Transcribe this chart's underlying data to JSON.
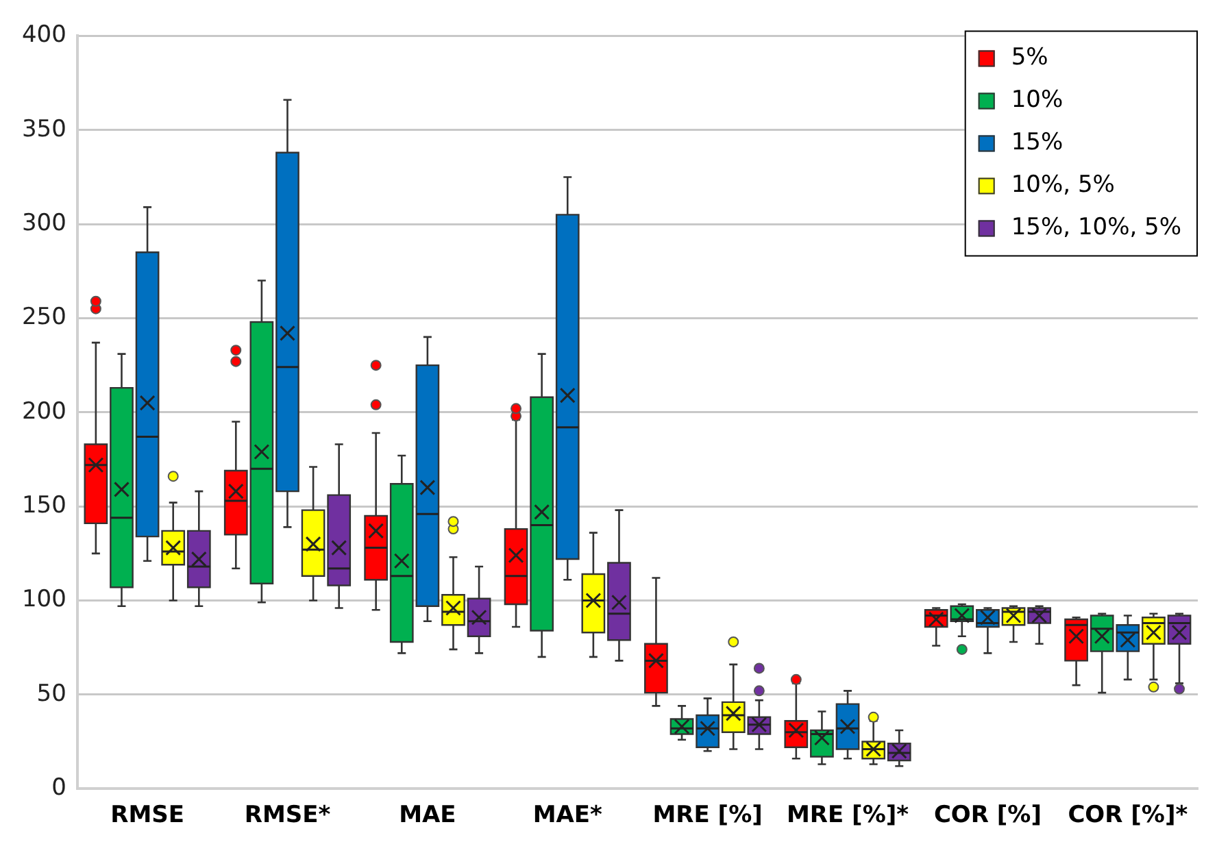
{
  "chart_data": {
    "type": "box",
    "categories": [
      "RMSE",
      "RMSE*",
      "MAE",
      "MAE*",
      "MRE [%]",
      "MRE [%]*",
      "COR [%]",
      "COR [%]*"
    ],
    "ylim": [
      0,
      400
    ],
    "yticks": [
      0,
      50,
      100,
      150,
      200,
      250,
      300,
      350,
      400
    ],
    "grid": "y",
    "legend": "top right",
    "series": [
      {
        "name": "5%",
        "color": "#ff0000",
        "boxes": [
          {
            "low": 125,
            "q1": 141,
            "median": 172,
            "q3": 183,
            "high": 237,
            "mean": 172,
            "outliers": [
              255,
              259
            ]
          },
          {
            "low": 117,
            "q1": 135,
            "median": 153,
            "q3": 169,
            "high": 195,
            "mean": 158,
            "outliers": [
              227,
              233
            ]
          },
          {
            "low": 95,
            "q1": 111,
            "median": 128,
            "q3": 145,
            "high": 189,
            "mean": 137,
            "outliers": [
              204,
              225
            ]
          },
          {
            "low": 86,
            "q1": 98,
            "median": 113,
            "q3": 138,
            "high": 196,
            "mean": 124,
            "outliers": [
              198,
              202
            ]
          },
          {
            "low": 44,
            "q1": 51,
            "median": 68,
            "q3": 77,
            "high": 112,
            "mean": 68
          },
          {
            "low": 16,
            "q1": 22,
            "median": 30,
            "q3": 36,
            "high": 56,
            "mean": 31,
            "outliers": [
              58
            ]
          },
          {
            "low": 76,
            "q1": 86,
            "median": 92,
            "q3": 95,
            "high": 96,
            "mean": 90
          },
          {
            "low": 55,
            "q1": 68,
            "median": 87,
            "q3": 90,
            "high": 91,
            "mean": 81
          }
        ]
      },
      {
        "name": "10%",
        "color": "#00b050",
        "boxes": [
          {
            "low": 97,
            "q1": 107,
            "median": 144,
            "q3": 213,
            "high": 231,
            "mean": 159
          },
          {
            "low": 99,
            "q1": 109,
            "median": 170,
            "q3": 248,
            "high": 270,
            "mean": 179
          },
          {
            "low": 72,
            "q1": 78,
            "median": 113,
            "q3": 162,
            "high": 177,
            "mean": 121
          },
          {
            "low": 70,
            "q1": 84,
            "median": 140,
            "q3": 208,
            "high": 231,
            "mean": 147
          },
          {
            "low": 26,
            "q1": 29,
            "median": 32,
            "q3": 37,
            "high": 44,
            "mean": 33
          },
          {
            "low": 13,
            "q1": 17,
            "median": 29,
            "q3": 31,
            "high": 41,
            "mean": 27
          },
          {
            "low": 81,
            "q1": 89,
            "median": 90,
            "q3": 97,
            "high": 98,
            "mean": 92,
            "outliers": [
              74
            ]
          },
          {
            "low": 51,
            "q1": 73,
            "median": 85,
            "q3": 92,
            "high": 93,
            "mean": 81
          }
        ]
      },
      {
        "name": "15%",
        "color": "#0070c0",
        "boxes": [
          {
            "low": 121,
            "q1": 134,
            "median": 187,
            "q3": 285,
            "high": 309,
            "mean": 205
          },
          {
            "low": 139,
            "q1": 158,
            "median": 224,
            "q3": 338,
            "high": 366,
            "mean": 242
          },
          {
            "low": 89,
            "q1": 97,
            "median": 146,
            "q3": 225,
            "high": 240,
            "mean": 160
          },
          {
            "low": 111,
            "q1": 122,
            "median": 192,
            "q3": 305,
            "high": 325,
            "mean": 209
          },
          {
            "low": 20,
            "q1": 22,
            "median": 32,
            "q3": 39,
            "high": 48,
            "mean": 32
          },
          {
            "low": 16,
            "q1": 21,
            "median": 32,
            "q3": 45,
            "high": 52,
            "mean": 33
          },
          {
            "low": 72,
            "q1": 86,
            "median": 88,
            "q3": 95,
            "high": 96,
            "mean": 91
          },
          {
            "low": 58,
            "q1": 73,
            "median": 83,
            "q3": 87,
            "high": 92,
            "mean": 79
          }
        ]
      },
      {
        "name": "10%, 5%",
        "color": "#ffff00",
        "boxes": [
          {
            "low": 100,
            "q1": 119,
            "median": 126,
            "q3": 137,
            "high": 152,
            "mean": 128,
            "outliers": [
              166
            ]
          },
          {
            "low": 100,
            "q1": 113,
            "median": 127,
            "q3": 148,
            "high": 171,
            "mean": 130
          },
          {
            "low": 74,
            "q1": 87,
            "median": 94,
            "q3": 103,
            "high": 123,
            "mean": 96,
            "outliers": [
              138,
              142
            ]
          },
          {
            "low": 70,
            "q1": 83,
            "median": 100,
            "q3": 114,
            "high": 136,
            "mean": 100
          },
          {
            "low": 21,
            "q1": 30,
            "median": 39,
            "q3": 46,
            "high": 66,
            "mean": 40,
            "outliers": [
              78
            ]
          },
          {
            "low": 13,
            "q1": 16,
            "median": 21,
            "q3": 25,
            "high": 36,
            "mean": 21,
            "outliers": [
              38
            ]
          },
          {
            "low": 78,
            "q1": 87,
            "median": 94,
            "q3": 96,
            "high": 97,
            "mean": 92
          },
          {
            "low": 58,
            "q1": 77,
            "median": 88,
            "q3": 91,
            "high": 93,
            "mean": 83,
            "outliers": [
              54
            ]
          }
        ]
      },
      {
        "name": "15%, 10%, 5%",
        "color": "#7030a0",
        "boxes": [
          {
            "low": 97,
            "q1": 107,
            "median": 118,
            "q3": 137,
            "high": 158,
            "mean": 122
          },
          {
            "low": 96,
            "q1": 108,
            "median": 117,
            "q3": 156,
            "high": 183,
            "mean": 128
          },
          {
            "low": 72,
            "q1": 81,
            "median": 89,
            "q3": 101,
            "high": 118,
            "mean": 91
          },
          {
            "low": 68,
            "q1": 79,
            "median": 93,
            "q3": 120,
            "high": 148,
            "mean": 99
          },
          {
            "low": 21,
            "q1": 29,
            "median": 34,
            "q3": 38,
            "high": 47,
            "mean": 34,
            "outliers": [
              52,
              64
            ]
          },
          {
            "low": 12,
            "q1": 15,
            "median": 19,
            "q3": 24,
            "high": 31,
            "mean": 20
          },
          {
            "low": 77,
            "q1": 88,
            "median": 94,
            "q3": 96,
            "high": 97,
            "mean": 92
          },
          {
            "low": 56,
            "q1": 77,
            "median": 88,
            "q3": 92,
            "high": 93,
            "mean": 83,
            "outliers": [
              53
            ]
          }
        ]
      }
    ]
  }
}
